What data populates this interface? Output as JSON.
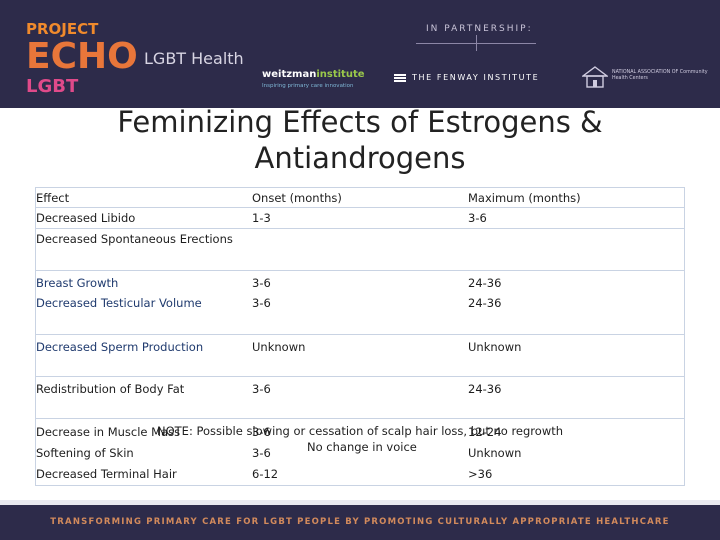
{
  "header": {
    "logo": {
      "project": "PROJECT",
      "echo": "ECHO",
      "lgbt": "LGBT",
      "health": "LGBT Health"
    },
    "partnership_label": "IN PARTNERSHIP:",
    "weitzman": {
      "name_left": "weitzman",
      "name_right": "institute",
      "tagline": "Inspiring primary care innovation"
    },
    "fenway": "THE FENWAY INSTITUTE",
    "nachc": "NATIONAL ASSOCIATION OF Community Health Centers"
  },
  "slide": {
    "title_line1": "Feminizing Effects of Estrogens &",
    "title_line2": "Antiandrogens"
  },
  "table": {
    "headers": [
      "Effect",
      "Onset (months)",
      "Maximum (months)"
    ],
    "rows": [
      {
        "effect": "Decreased Libido",
        "onset": "1-3",
        "max": "3-6"
      },
      {
        "effect": "Decreased Spontaneous Erections",
        "onset": "",
        "max": ""
      },
      {
        "effect": "Breast Growth",
        "onset": "3-6",
        "max": "24-36"
      },
      {
        "effect": "Decreased Testicular Volume",
        "onset": "3-6",
        "max": "24-36"
      },
      {
        "effect": "Decreased Sperm Production",
        "onset": "Unknown",
        "max": "Unknown"
      },
      {
        "effect": "Redistribution of Body Fat",
        "onset": "3-6",
        "max": "24-36"
      },
      {
        "effect": "Decrease in Muscle Mass",
        "onset": "3-6",
        "max": "12-24"
      },
      {
        "effect": "Softening of Skin",
        "onset": "3-6",
        "max": "Unknown"
      },
      {
        "effect": "Decreased Terminal Hair",
        "onset": "6-12",
        "max": ">36"
      }
    ],
    "note_line1": "NOTE: Possible slowing or cessation of scalp hair loss, but no regrowth",
    "note_line2": "No change in voice"
  },
  "footer": {
    "tagline": "TRANSFORMING PRIMARY CARE FOR LGBT PEOPLE BY PROMOTING CULTURALLY APPROPRIATE HEALTHCARE"
  },
  "colors": {
    "header_bg": "#2d2b4a",
    "echo_orange": "#e8763a",
    "footer_text": "#d28a5c",
    "row_text_blue": "#1f3a6e"
  }
}
